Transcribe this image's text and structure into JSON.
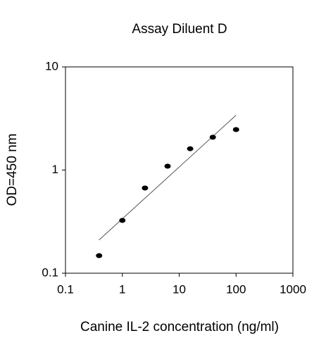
{
  "chart_data": {
    "type": "scatter",
    "title": "Assay Diluent D",
    "x_label": "Canine IL-2 concentration (ng/ml)",
    "y_label": "OD=450 nm",
    "x_scale": "log",
    "y_scale": "log",
    "x": [
      0.39,
      1.0,
      2.5,
      6.25,
      15.6,
      39,
      100
    ],
    "values": [
      0.148,
      0.325,
      0.67,
      1.09,
      1.61,
      2.08,
      2.47
    ],
    "color": "#000000",
    "fit": {
      "x": [
        0.39,
        100
      ],
      "values": [
        0.21,
        3.4
      ],
      "color": "#555555"
    },
    "xlim": [
      0.1,
      1000
    ],
    "xticks": [
      0.1,
      1,
      10,
      100,
      1000
    ],
    "ylim": [
      0.1,
      10
    ],
    "yticks": [
      0.1,
      1,
      10
    ]
  }
}
